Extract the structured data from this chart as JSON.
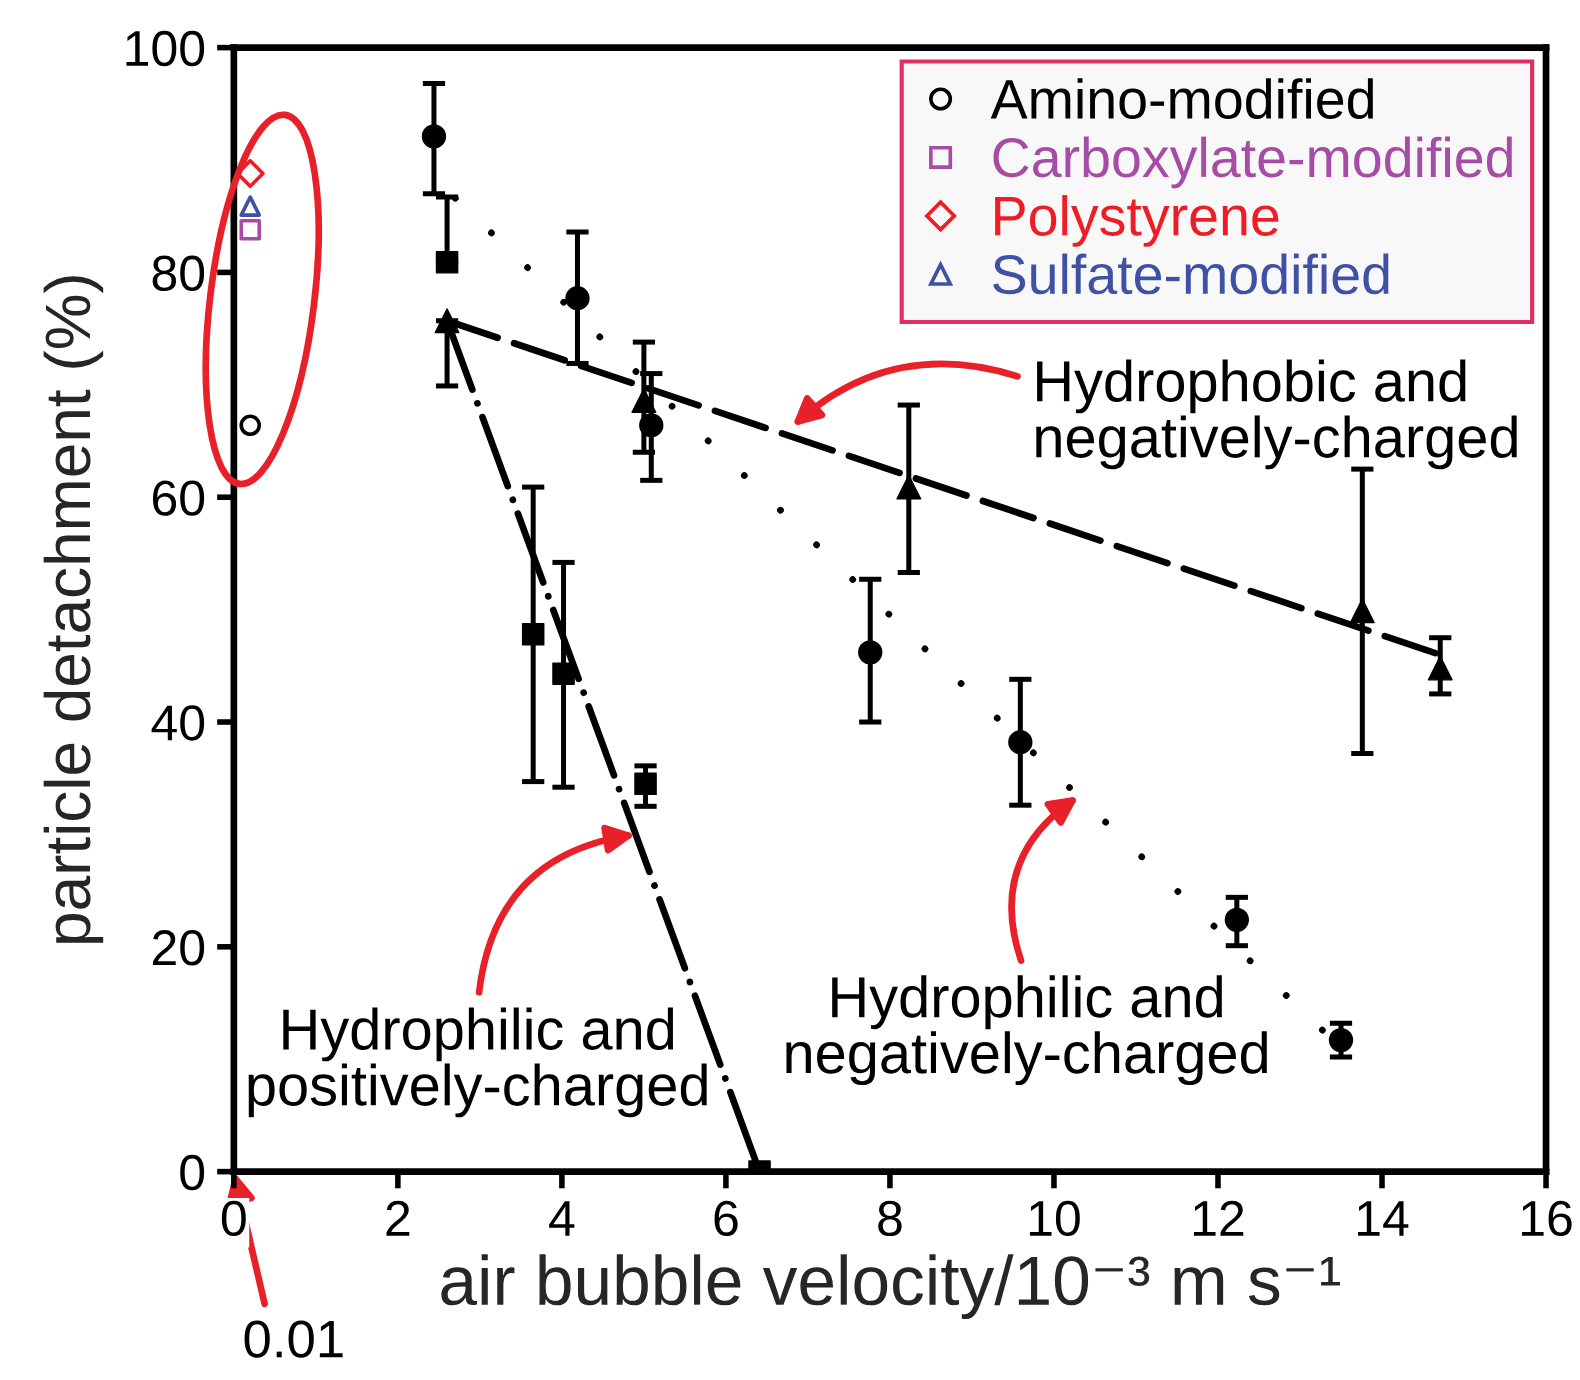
{
  "chart_data": {
    "type": "scatter",
    "xlabel": "air bubble velocity/10⁻³ m s⁻¹",
    "ylabel": "particle detachment (%)",
    "xlim": [
      0,
      16
    ],
    "xticks": [
      0,
      2,
      4,
      6,
      8,
      10,
      12,
      14,
      16
    ],
    "ylim": [
      0,
      100
    ],
    "yticks": [
      0,
      20,
      40,
      60,
      80,
      100
    ],
    "grid": false,
    "legend": "top right",
    "series": [
      {
        "name": "Amino-modified",
        "marker": "circle",
        "color": "#000000",
        "x": [
          0.2
        ],
        "values": [
          66.4
        ]
      },
      {
        "name": "Carboxylate-modified",
        "marker": "square",
        "color": "#a64ca6",
        "x": [
          0.2
        ],
        "values": [
          83.8
        ]
      },
      {
        "name": "Polystyrene",
        "marker": "diamond",
        "color": "#ee1c25",
        "x": [
          0.2
        ],
        "values": [
          88.8
        ]
      },
      {
        "name": "Sulfate-modified",
        "marker": "triangle",
        "color": "#3f51a5",
        "x": [
          0.2
        ],
        "values": [
          85.9
        ]
      },
      {
        "marker": "circle",
        "color": "#000000",
        "x": [
          2.44,
          4.19,
          5.09,
          7.76,
          9.59,
          12.23,
          13.5
        ],
        "values": [
          92.1,
          77.7,
          66.4,
          46.2,
          38.2,
          22.4,
          11.7
        ],
        "errors": [
          [
            87.0,
            96.8
          ],
          [
            71.9,
            83.6
          ],
          [
            61.5,
            71.0
          ],
          [
            40.0,
            52.7
          ],
          [
            32.6,
            43.8
          ],
          [
            20.1,
            24.4
          ],
          [
            10.2,
            13.2
          ]
        ]
      },
      {
        "type": "line",
        "marker": "none",
        "line_style": "dotted",
        "color": "#000000",
        "x": [
          2.7,
          13.5
        ],
        "values": [
          86.6,
          11.0
        ]
      },
      {
        "marker": "square",
        "color": "#000000",
        "x": [
          2.6,
          3.65,
          4.02,
          5.02,
          6.41
        ],
        "values": [
          80.9,
          47.8,
          44.3,
          34.5,
          0
        ],
        "errors": [
          [
            80.9,
            86.7
          ],
          [
            34.7,
            60.9
          ],
          [
            34.2,
            54.2
          ],
          [
            32.5,
            36.1
          ],
          null
        ]
      },
      {
        "type": "line",
        "marker": "none",
        "line_style": "dashdot",
        "color": "#000000",
        "x": [
          2.6,
          6.41
        ],
        "values": [
          75.7,
          0
        ]
      },
      {
        "marker": "triangle",
        "color": "#000000",
        "x": [
          2.6,
          5.0,
          8.23,
          13.76,
          14.71
        ],
        "values": [
          75.7,
          68.6,
          60.9,
          49.9,
          44.8
        ],
        "errors": [
          [
            69.9,
            75.7
          ],
          [
            64.0,
            73.8
          ],
          [
            53.3,
            68.2
          ],
          [
            37.2,
            62.5
          ],
          [
            42.5,
            47.5
          ]
        ]
      },
      {
        "type": "line",
        "marker": "none",
        "line_style": "dashed",
        "color": "#000000",
        "x": [
          2.6,
          14.7
        ],
        "values": [
          75.7,
          46.0
        ]
      }
    ],
    "annotations": [
      {
        "text": "Hydrophobic and\nnegatively-charged",
        "x": 6.81,
        "y": 66.3
      },
      {
        "text": "Hydrophilic and\nnegatively-charged",
        "x": 10.3,
        "y": 33.4
      },
      {
        "text": "Hydrophilic and\npositively-charged",
        "x": 4.9,
        "y": 30.0
      },
      "0.01"
    ]
  }
}
